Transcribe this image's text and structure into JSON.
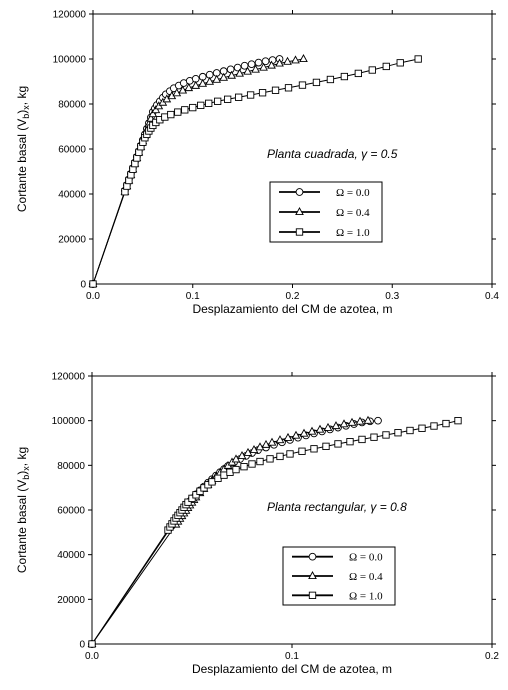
{
  "chart_data": [
    {
      "type": "line",
      "xlabel": "Desplazamiento del CM de azotea, m",
      "ylabel": "Cortante basal (V_b)_x, kg",
      "ylabel_main": "Cortante basal (V",
      "ylabel_sub1": "b",
      "ylabel_mid": ")",
      "ylabel_sub2": "x",
      "ylabel_end": ", kg",
      "annotation": "Planta cuadrada, γ = 0.5",
      "xlim": [
        0,
        0.4
      ],
      "ylim": [
        0,
        120000
      ],
      "xticks": [
        0.0,
        0.1,
        0.2,
        0.3,
        0.4
      ],
      "xtick_labels": [
        "0.0",
        "0.1",
        "0.2",
        "0.3",
        "0.4"
      ],
      "yticks": [
        0,
        20000,
        40000,
        60000,
        80000,
        100000,
        120000
      ],
      "ytick_labels": [
        "0",
        "20000",
        "40000",
        "60000",
        "80000",
        "100000",
        "120000"
      ],
      "legend_position": "center-right",
      "series": [
        {
          "name": "Ω = 0.0",
          "marker": "circle",
          "x": [
            0,
            0.032,
            0.034,
            0.036,
            0.038,
            0.04,
            0.042,
            0.044,
            0.046,
            0.048,
            0.05,
            0.052,
            0.054,
            0.056,
            0.058,
            0.06,
            0.062,
            0.064,
            0.067,
            0.07,
            0.073,
            0.077,
            0.081,
            0.086,
            0.091,
            0.097,
            0.103,
            0.11,
            0.117,
            0.124,
            0.131,
            0.138,
            0.145,
            0.152,
            0.159,
            0.166,
            0.173,
            0.18,
            0.187
          ],
          "y": [
            0,
            41500,
            44000,
            46500,
            49000,
            51500,
            54000,
            56500,
            59000,
            61500,
            64000,
            66500,
            69000,
            71500,
            74000,
            76500,
            78000,
            79500,
            81200,
            82800,
            84300,
            85700,
            87000,
            88200,
            89300,
            90300,
            91200,
            92100,
            93000,
            93800,
            94600,
            95400,
            96200,
            97000,
            97700,
            98400,
            99000,
            99500,
            100000
          ]
        },
        {
          "name": "Ω = 0.4",
          "marker": "triangle",
          "x": [
            0,
            0.032,
            0.034,
            0.036,
            0.038,
            0.04,
            0.042,
            0.044,
            0.046,
            0.048,
            0.05,
            0.052,
            0.054,
            0.056,
            0.058,
            0.06,
            0.063,
            0.066,
            0.07,
            0.074,
            0.079,
            0.084,
            0.09,
            0.096,
            0.103,
            0.11,
            0.117,
            0.124,
            0.131,
            0.139,
            0.147,
            0.155,
            0.163,
            0.171,
            0.179,
            0.187,
            0.195,
            0.203,
            0.211
          ],
          "y": [
            0,
            41000,
            43500,
            46000,
            48500,
            51000,
            53500,
            56000,
            58500,
            61000,
            63500,
            66000,
            68500,
            71000,
            73500,
            75500,
            77300,
            79000,
            80600,
            82100,
            83500,
            84800,
            86000,
            87100,
            88100,
            89000,
            89900,
            90800,
            91700,
            92600,
            93500,
            94400,
            95300,
            96200,
            97100,
            98000,
            98800,
            99400,
            100000
          ]
        },
        {
          "name": "Ω = 1.0",
          "marker": "square",
          "x": [
            0,
            0.032,
            0.034,
            0.036,
            0.038,
            0.04,
            0.042,
            0.044,
            0.046,
            0.048,
            0.05,
            0.052,
            0.054,
            0.056,
            0.058,
            0.06,
            0.063,
            0.067,
            0.072,
            0.078,
            0.085,
            0.092,
            0.1,
            0.108,
            0.116,
            0.125,
            0.135,
            0.146,
            0.158,
            0.17,
            0.183,
            0.196,
            0.21,
            0.224,
            0.238,
            0.252,
            0.266,
            0.28,
            0.294,
            0.308,
            0.326
          ],
          "y": [
            0,
            41000,
            43500,
            46000,
            48500,
            51000,
            53500,
            56000,
            58500,
            61000,
            63000,
            65000,
            66500,
            68000,
            69300,
            70500,
            71800,
            73000,
            74200,
            75300,
            76400,
            77400,
            78400,
            79400,
            80300,
            81200,
            82100,
            83000,
            84000,
            85000,
            86100,
            87200,
            88400,
            89600,
            90900,
            92200,
            93600,
            95100,
            96700,
            98300,
            100000
          ]
        }
      ]
    },
    {
      "type": "line",
      "xlabel": "Desplazamiento del CM de azotea, m",
      "ylabel": "Cortante basal (V_b)_x, kg",
      "ylabel_main": "Cortante basal (V",
      "ylabel_sub1": "b",
      "ylabel_mid": ")",
      "ylabel_sub2": "x",
      "ylabel_end": ", kg",
      "annotation": "Planta rectangular, γ = 0.8",
      "xlim": [
        0,
        0.2
      ],
      "ylim": [
        0,
        120000
      ],
      "xticks": [
        0.0,
        0.1,
        0.2
      ],
      "xtick_labels": [
        "0.0",
        "0.1",
        "0.2"
      ],
      "yticks": [
        0,
        20000,
        40000,
        60000,
        80000,
        100000,
        120000
      ],
      "ytick_labels": [
        "0",
        "20000",
        "40000",
        "60000",
        "80000",
        "100000",
        "120000"
      ],
      "legend_position": "bottom-center",
      "series": [
        {
          "name": "Ω = 0.0",
          "marker": "circle",
          "x": [
            0,
            0.04,
            0.041,
            0.042,
            0.043,
            0.044,
            0.045,
            0.046,
            0.047,
            0.048,
            0.049,
            0.05,
            0.052,
            0.054,
            0.056,
            0.058,
            0.06,
            0.062,
            0.064,
            0.066,
            0.068,
            0.071,
            0.074,
            0.077,
            0.08,
            0.083,
            0.087,
            0.091,
            0.095,
            0.099,
            0.103,
            0.107,
            0.111,
            0.115,
            0.119,
            0.123,
            0.127,
            0.131,
            0.135,
            0.139,
            0.143
          ],
          "y": [
            0,
            53000,
            54300,
            55600,
            56800,
            58000,
            59200,
            60400,
            61600,
            62800,
            64000,
            65200,
            67000,
            68800,
            70500,
            72200,
            73800,
            75400,
            76900,
            78300,
            79700,
            81300,
            82800,
            84200,
            85500,
            86800,
            88000,
            89200,
            90300,
            91400,
            92400,
            93400,
            94300,
            95200,
            96100,
            96900,
            97700,
            98500,
            99200,
            99700,
            100000
          ]
        },
        {
          "name": "Ω = 0.4",
          "marker": "triangle",
          "x": [
            0,
            0.042,
            0.043,
            0.044,
            0.045,
            0.046,
            0.047,
            0.048,
            0.049,
            0.05,
            0.051,
            0.052,
            0.054,
            0.056,
            0.058,
            0.06,
            0.062,
            0.064,
            0.066,
            0.068,
            0.07,
            0.072,
            0.075,
            0.078,
            0.081,
            0.084,
            0.087,
            0.09,
            0.094,
            0.098,
            0.102,
            0.106,
            0.11,
            0.114,
            0.118,
            0.122,
            0.126,
            0.13,
            0.134,
            0.138
          ],
          "y": [
            0,
            53500,
            54800,
            56100,
            57300,
            58500,
            59700,
            60900,
            62100,
            63300,
            64500,
            65700,
            67600,
            69500,
            71300,
            73100,
            74900,
            76600,
            78200,
            79800,
            81300,
            82700,
            84200,
            85600,
            86900,
            88100,
            89200,
            90200,
            91300,
            92300,
            93300,
            94200,
            95100,
            96000,
            96800,
            97600,
            98400,
            99100,
            99600,
            100000
          ]
        },
        {
          "name": "Ω = 1.0",
          "marker": "square",
          "x": [
            0,
            0.038,
            0.039,
            0.04,
            0.041,
            0.042,
            0.043,
            0.044,
            0.045,
            0.046,
            0.047,
            0.048,
            0.05,
            0.052,
            0.054,
            0.056,
            0.058,
            0.06,
            0.063,
            0.066,
            0.069,
            0.072,
            0.076,
            0.08,
            0.084,
            0.089,
            0.094,
            0.099,
            0.105,
            0.111,
            0.117,
            0.123,
            0.129,
            0.135,
            0.141,
            0.147,
            0.153,
            0.159,
            0.165,
            0.171,
            0.177,
            0.183
          ],
          "y": [
            0,
            51000,
            52400,
            53800,
            55100,
            56400,
            57600,
            58800,
            60000,
            61200,
            62400,
            63500,
            65200,
            66800,
            68400,
            69900,
            71300,
            72600,
            74200,
            75600,
            76900,
            78100,
            79400,
            80600,
            81700,
            82900,
            84000,
            85100,
            86300,
            87400,
            88500,
            89600,
            90600,
            91600,
            92600,
            93600,
            94600,
            95600,
            96600,
            97600,
            98700,
            100000
          ]
        }
      ]
    }
  ]
}
